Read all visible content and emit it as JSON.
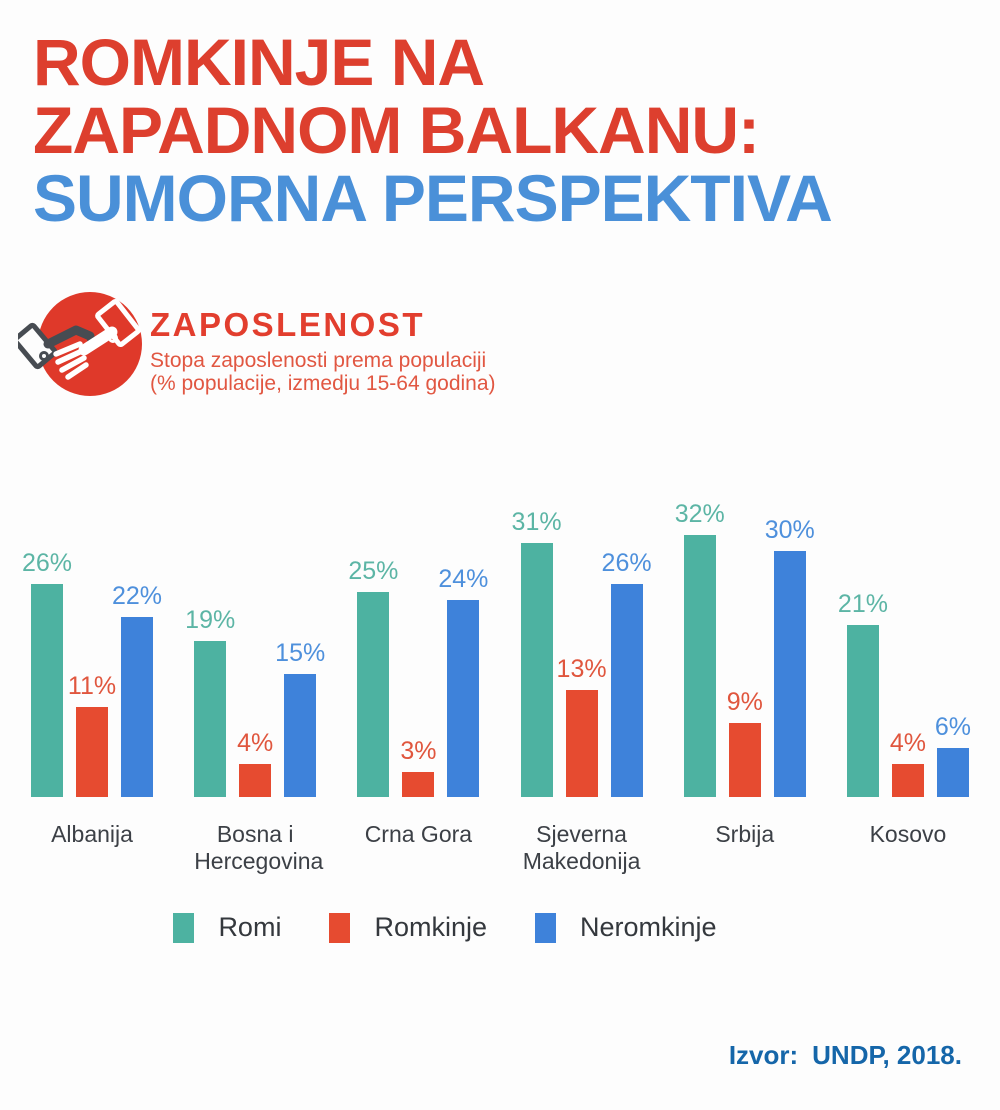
{
  "header": {
    "title_line1": "ROMKINJE NA",
    "title_line2": "ZAPADNOM BALKANU:",
    "title_line3": "SUMORNA PERSPEKTIVA",
    "title_red": "#dd3f2e",
    "title_blue": "#4a90d8"
  },
  "section": {
    "icon": "handshake-icon",
    "icon_circle_color": "#df392a",
    "heading": "ZAPOSLENOST",
    "subtitle_line1": "Stopa zaposlenosti prema populaciji",
    "subtitle_line2": "(% populacije, izmedju 15-64 godina)"
  },
  "chart_data": {
    "type": "bar",
    "title": "ZAPOSLENOST",
    "subtitle": "Stopa zaposlenosti prema populaciji (% populacije, izmedju 15-64 godina)",
    "categories": [
      "Albanija",
      "Bosna i Hercegovina",
      "Crna Gora",
      "Sjeverna Makedonija",
      "Srbija",
      "Kosovo"
    ],
    "series": [
      {
        "name": "Romi",
        "color": "#4db2a1",
        "label_color": "#5cb5a5",
        "values": [
          26,
          19,
          25,
          31,
          32,
          21
        ]
      },
      {
        "name": "Romkinje",
        "color": "#e64b30",
        "label_color": "#e0563e",
        "values": [
          11,
          4,
          3,
          13,
          9,
          4
        ]
      },
      {
        "name": "Neromkinje",
        "color": "#3e82da",
        "label_color": "#4e90dc",
        "values": [
          22,
          15,
          24,
          26,
          30,
          6
        ]
      }
    ],
    "value_suffix": "%",
    "ylim": [
      0,
      32
    ],
    "grid": false,
    "legend_position": "bottom",
    "legend": [
      "Romi",
      "Romkinje",
      "Neromkinje"
    ]
  },
  "source": {
    "label": "Izvor:",
    "value": "UNDP, 2018."
  }
}
